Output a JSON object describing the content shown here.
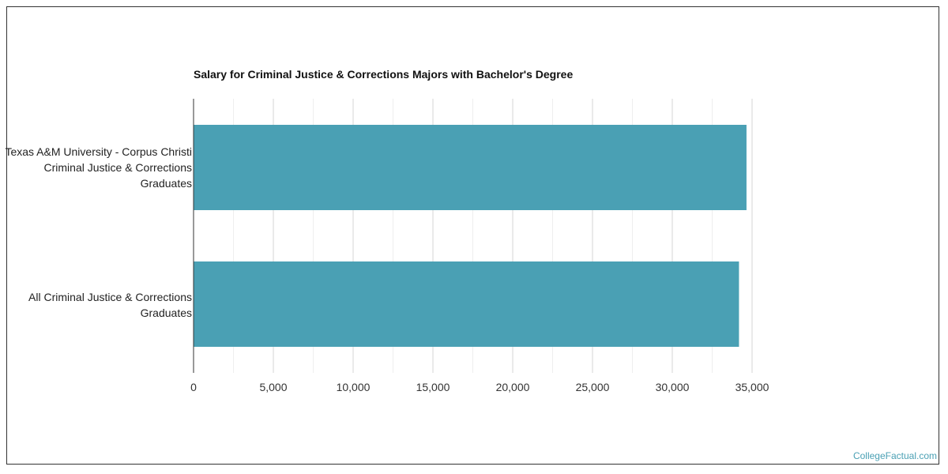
{
  "chart_data": {
    "type": "bar",
    "orientation": "horizontal",
    "title": "Salary for Criminal Justice & Corrections Majors with Bachelor's Degree",
    "categories": [
      "Texas A&M University - Corpus Christi Criminal Justice & Corrections Graduates",
      "All Criminal Justice & Corrections Graduates"
    ],
    "values": [
      34650,
      34180
    ],
    "xlim": [
      0,
      35000
    ],
    "xticks": [
      "0",
      "5,000",
      "10,000",
      "15,000",
      "20,000",
      "25,000",
      "30,000",
      "35,000"
    ],
    "xtick_values": [
      0,
      5000,
      10000,
      15000,
      20000,
      25000,
      30000,
      35000
    ],
    "grid": true,
    "bar_color": "#4aa0b4"
  },
  "watermark": "CollegeFactual.com"
}
